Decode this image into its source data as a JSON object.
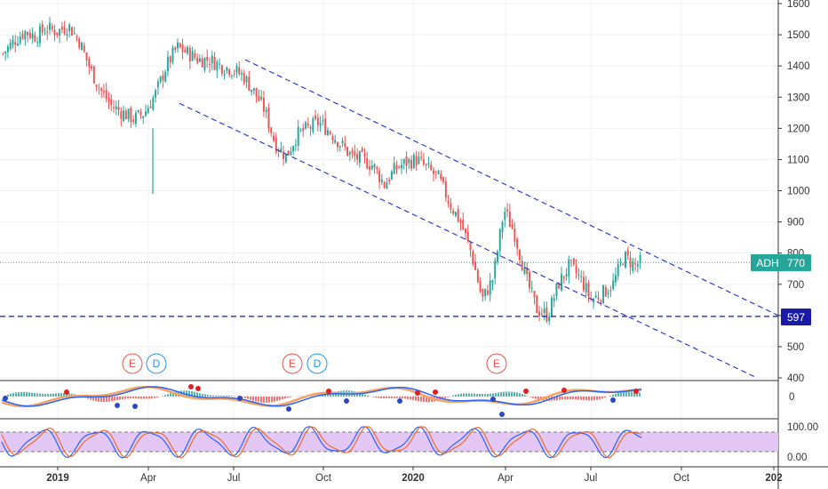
{
  "chart_data": {
    "type": "candlestick",
    "symbol": "ADH",
    "last_price": "770",
    "support_level": "597",
    "y_range": [
      380,
      1620
    ],
    "y_ticks": [
      "1600",
      "1500",
      "1400",
      "1300",
      "1200",
      "1100",
      "1000",
      "900",
      "800",
      "700",
      "600",
      "500",
      "400"
    ],
    "x_ticks": [
      "2019",
      "Apr",
      "Jul",
      "Oct",
      "2020",
      "Apr",
      "Jul",
      "Oct",
      "202"
    ],
    "x_tick_bold": [
      true,
      false,
      false,
      false,
      true,
      false,
      false,
      false,
      true
    ],
    "macd_tick": "0",
    "stoch_ticks": [
      "100.00",
      "0.00"
    ],
    "events": [
      {
        "label": "E",
        "kind": "earnings",
        "month": "2019-04"
      },
      {
        "label": "D",
        "kind": "dividend",
        "month": "2019-04"
      },
      {
        "label": "E",
        "kind": "earnings",
        "month": "2019-09"
      },
      {
        "label": "D",
        "kind": "dividend",
        "month": "2019-10"
      },
      {
        "label": "E",
        "kind": "earnings",
        "month": "2020-03"
      }
    ],
    "price_path": [
      [
        0,
        1440
      ],
      [
        2,
        1480
      ],
      [
        4,
        1510
      ],
      [
        6,
        1495
      ],
      [
        8,
        1520
      ],
      [
        10,
        1510
      ],
      [
        12,
        1530
      ],
      [
        14,
        1480
      ],
      [
        16,
        1390
      ],
      [
        18,
        1320
      ],
      [
        20,
        1270
      ],
      [
        22,
        1250
      ],
      [
        24,
        1230
      ],
      [
        26,
        1250
      ],
      [
        28,
        1310
      ],
      [
        30,
        1400
      ],
      [
        32,
        1460
      ],
      [
        34,
        1440
      ],
      [
        36,
        1420
      ],
      [
        38,
        1420
      ],
      [
        40,
        1400
      ],
      [
        42,
        1390
      ],
      [
        44,
        1370
      ],
      [
        46,
        1320
      ],
      [
        48,
        1260
      ],
      [
        50,
        1150
      ],
      [
        52,
        1110
      ],
      [
        54,
        1180
      ],
      [
        56,
        1200
      ],
      [
        58,
        1220
      ],
      [
        60,
        1190
      ],
      [
        62,
        1150
      ],
      [
        64,
        1110
      ],
      [
        66,
        1100
      ],
      [
        68,
        1080
      ],
      [
        70,
        1020
      ],
      [
        72,
        1070
      ],
      [
        74,
        1090
      ],
      [
        76,
        1100
      ],
      [
        78,
        1070
      ],
      [
        80,
        1040
      ],
      [
        82,
        960
      ],
      [
        84,
        900
      ],
      [
        86,
        800
      ],
      [
        88,
        650
      ],
      [
        90,
        720
      ],
      [
        92,
        940
      ],
      [
        94,
        860
      ],
      [
        96,
        720
      ],
      [
        98,
        620
      ],
      [
        100,
        600
      ],
      [
        102,
        700
      ],
      [
        104,
        760
      ],
      [
        106,
        720
      ],
      [
        108,
        650
      ],
      [
        110,
        670
      ],
      [
        112,
        700
      ],
      [
        114,
        790
      ],
      [
        116,
        760
      ],
      [
        117,
        770
      ]
    ],
    "channel_upper": [
      [
        43,
        1420
      ],
      [
        143,
        600
      ]
    ],
    "channel_lower": [
      [
        32,
        1280
      ],
      [
        132,
        400
      ]
    ]
  },
  "colors": {
    "up": "#26a69a",
    "down": "#ef5350",
    "trendline": "#2c3ecb",
    "support": "#1a1aa8",
    "price_line": "#26a69a",
    "stoch_band": "#e3c8f5",
    "stoch_k": "#2962ff",
    "stoch_d": "#ef6c2c"
  }
}
